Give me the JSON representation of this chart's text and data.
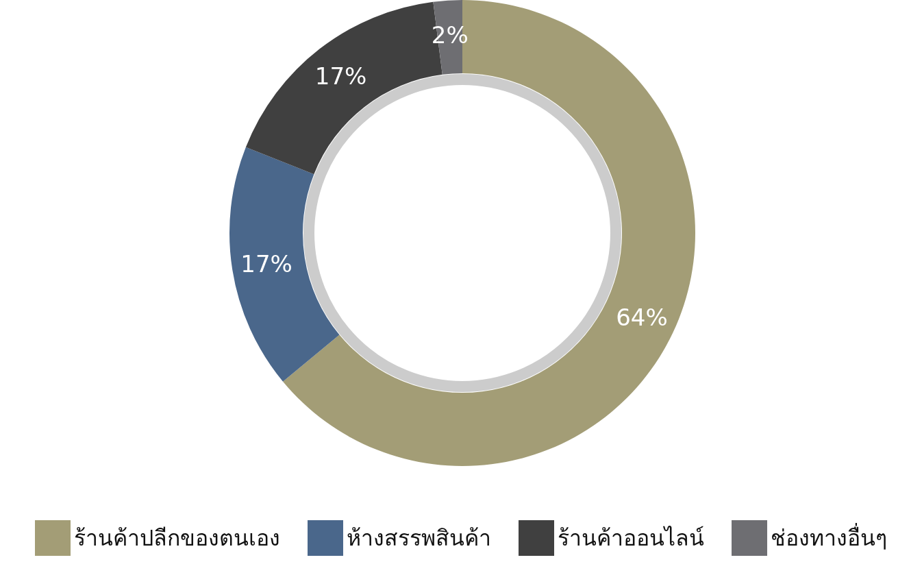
{
  "chart_data": {
    "type": "donut",
    "categories": [
      "ร้านค้าปลีกของตนเอง",
      "ห้างสรรพสินค้า",
      "ร้านค้าออนไลน์",
      "ช่องทางอื่นๆ"
    ],
    "values": [
      64,
      17,
      17,
      2
    ],
    "colors": [
      "#a39d76",
      "#4a678b",
      "#404040",
      "#6e6e72"
    ],
    "value_labels": [
      "64%",
      "17%",
      "17%",
      "2%"
    ],
    "legend": "bottom"
  }
}
